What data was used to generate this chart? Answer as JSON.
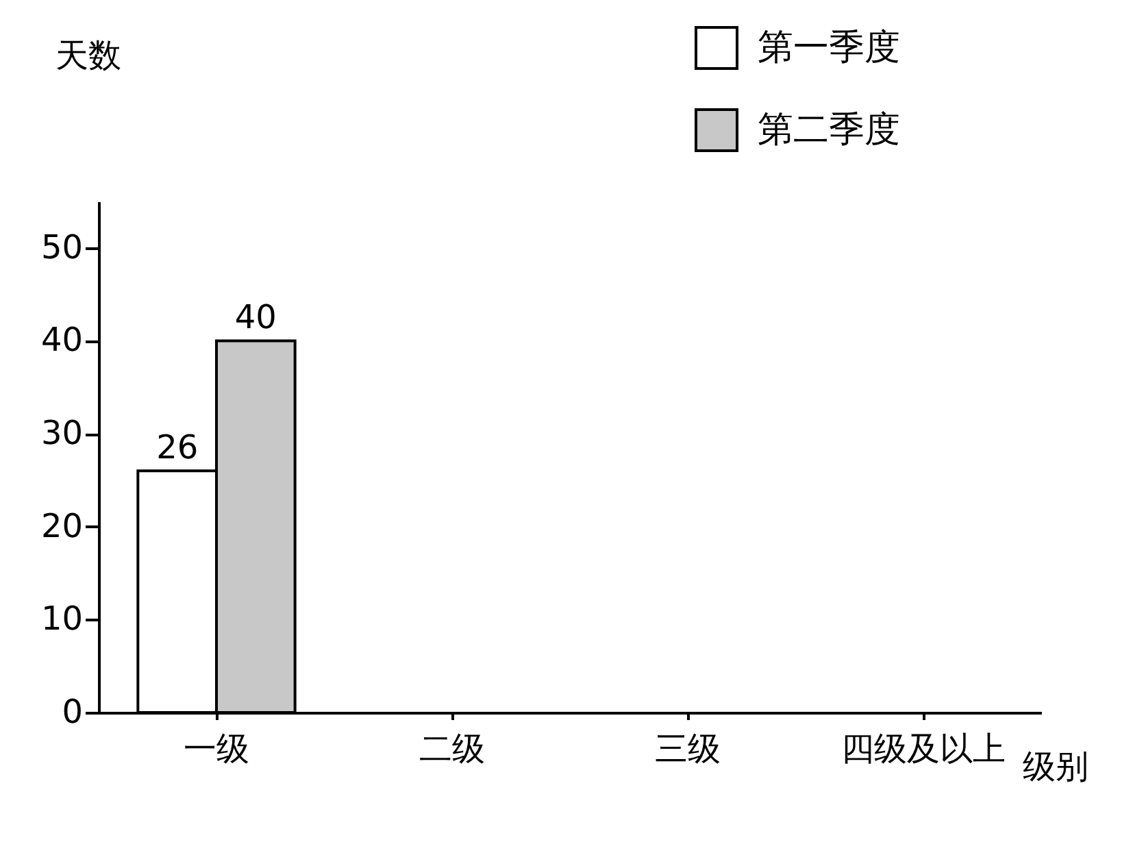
{
  "chart_data": {
    "type": "bar",
    "xlabel": "级别",
    "ylabel": "天数",
    "categories": [
      "一级",
      "二级",
      "三级",
      "四级及以上"
    ],
    "series": [
      {
        "name": "第一季度",
        "color": "#ffffff",
        "values": [
          26,
          null,
          null,
          null
        ]
      },
      {
        "name": "第二季度",
        "color": "#c8c8c8",
        "values": [
          40,
          null,
          null,
          null
        ]
      }
    ],
    "ylim": [
      0,
      55
    ],
    "yticks": [
      0,
      10,
      20,
      30,
      40,
      50
    ],
    "data_labels": true,
    "grid": false,
    "legend": "top right"
  }
}
